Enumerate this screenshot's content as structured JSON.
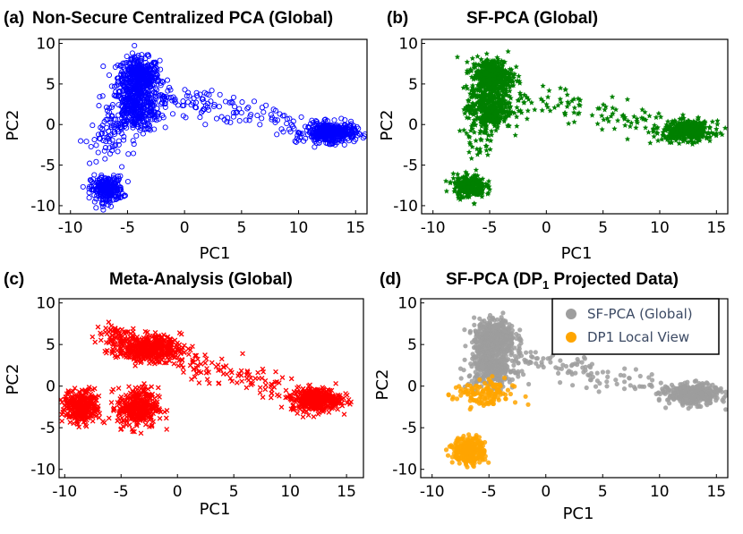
{
  "chart_data": [
    {
      "type": "scatter",
      "panel_label": "(a)",
      "title": "Non-Secure Centralized PCA (Global)",
      "xlabel": "PC1",
      "ylabel": "PC2",
      "xlim": [
        -11,
        16
      ],
      "ylim": [
        -11,
        10.5
      ],
      "xticks": [
        "-10",
        "-5",
        "0",
        "5",
        "10",
        "15"
      ],
      "yticks": [
        "10",
        "5",
        "0",
        "-5",
        "-10"
      ],
      "marker": "circle-open",
      "color": "#0000ff",
      "clusters": [
        {
          "cx": -4.0,
          "cy": 5.8,
          "sx": 0.9,
          "sy": 1.2,
          "n": 420
        },
        {
          "cx": -4.3,
          "cy": 2.0,
          "sx": 1.1,
          "sy": 1.4,
          "n": 380
        },
        {
          "cx": -6.8,
          "cy": -8.0,
          "sx": 0.7,
          "sy": 0.8,
          "n": 260
        },
        {
          "cx": 12.8,
          "cy": -1.0,
          "sx": 1.1,
          "sy": 0.6,
          "n": 420
        },
        {
          "cx": -7.0,
          "cy": -2.0,
          "sx": 0.9,
          "sy": 1.5,
          "n": 60
        }
      ],
      "bridge": {
        "x0": -2.5,
        "y0": 3.5,
        "x1": 10.0,
        "y1": 0.0,
        "n": 120,
        "spread": 0.9
      }
    },
    {
      "type": "scatter",
      "panel_label": "(b)",
      "title": "SF-PCA (Global)",
      "xlabel": "PC1",
      "ylabel": "PC2",
      "xlim": [
        -11,
        16
      ],
      "ylim": [
        -11,
        10.5
      ],
      "xticks": [
        "-10",
        "-5",
        "0",
        "5",
        "10",
        "15"
      ],
      "yticks": [
        "10",
        "5",
        "0",
        "-5",
        "-10"
      ],
      "marker": "star",
      "color": "#008000",
      "clusters": [
        {
          "cx": -4.8,
          "cy": 6.0,
          "sx": 0.9,
          "sy": 1.1,
          "n": 420
        },
        {
          "cx": -5.0,
          "cy": 2.0,
          "sx": 1.0,
          "sy": 1.3,
          "n": 380
        },
        {
          "cx": -6.8,
          "cy": -7.6,
          "sx": 0.7,
          "sy": 0.7,
          "n": 260
        },
        {
          "cx": 12.5,
          "cy": -0.8,
          "sx": 1.1,
          "sy": 0.6,
          "n": 420
        },
        {
          "cx": -6.0,
          "cy": -2.0,
          "sx": 0.8,
          "sy": 1.5,
          "n": 40
        }
      ],
      "bridge": {
        "x0": -3.0,
        "y0": 3.5,
        "x1": 10.0,
        "y1": 0.0,
        "n": 110,
        "spread": 0.9
      }
    },
    {
      "type": "scatter",
      "panel_label": "(c)",
      "title": "Meta-Analysis (Global)",
      "xlabel": "PC1",
      "ylabel": "PC2",
      "xlim": [
        -10.5,
        16.5
      ],
      "ylim": [
        -11,
        10.5
      ],
      "xticks": [
        "-10",
        "-5",
        "0",
        "5",
        "10",
        "15"
      ],
      "yticks": [
        "10",
        "5",
        "0",
        "-5",
        "-10"
      ],
      "marker": "x",
      "color": "#ff0000",
      "clusters": [
        {
          "cx": -2.5,
          "cy": 4.5,
          "sx": 1.4,
          "sy": 0.8,
          "n": 420
        },
        {
          "cx": -8.5,
          "cy": -2.5,
          "sx": 0.8,
          "sy": 1.0,
          "n": 300
        },
        {
          "cx": -3.5,
          "cy": -2.6,
          "sx": 0.9,
          "sy": 1.2,
          "n": 340
        },
        {
          "cx": 12.3,
          "cy": -1.6,
          "sx": 1.1,
          "sy": 0.7,
          "n": 400
        },
        {
          "cx": -5.5,
          "cy": 6.0,
          "sx": 0.9,
          "sy": 0.8,
          "n": 70
        }
      ],
      "bridge": {
        "x0": 0.0,
        "y0": 3.0,
        "x1": 10.0,
        "y1": -0.5,
        "n": 100,
        "spread": 0.8
      }
    },
    {
      "type": "scatter",
      "panel_label": "(d)",
      "title_main": "SF-PCA (DP",
      "title_sub": "1",
      "title_tail": " Projected Data)",
      "xlabel": "PC1",
      "ylabel": "PC2",
      "xlim": [
        -11,
        16
      ],
      "ylim": [
        -11,
        10.5
      ],
      "xticks": [
        "-10",
        "-5",
        "0",
        "5",
        "10",
        "15"
      ],
      "yticks": [
        "10",
        "5",
        "0",
        "-5",
        "-10"
      ],
      "marker": "dot",
      "legend_position": "top-right",
      "series": [
        {
          "name": "SF-PCA (Global)",
          "color": "#9e9e9e",
          "clusters": [
            {
              "cx": -4.5,
              "cy": 5.8,
              "sx": 0.9,
              "sy": 1.1,
              "n": 420
            },
            {
              "cx": -4.7,
              "cy": 2.3,
              "sx": 1.0,
              "sy": 1.2,
              "n": 360
            },
            {
              "cx": 13.0,
              "cy": -1.0,
              "sx": 1.1,
              "sy": 0.6,
              "n": 420
            }
          ],
          "bridge": {
            "x0": -3.0,
            "y0": 3.5,
            "x1": 10.5,
            "y1": 0.0,
            "n": 110,
            "spread": 0.9
          }
        },
        {
          "name": "DP1 Local View",
          "color": "#ffa500",
          "clusters": [
            {
              "cx": -6.7,
              "cy": -7.8,
              "sx": 0.7,
              "sy": 0.8,
              "n": 280
            },
            {
              "cx": -5.5,
              "cy": -1.0,
              "sx": 1.3,
              "sy": 0.9,
              "n": 130
            }
          ],
          "bridge": null
        }
      ]
    }
  ]
}
